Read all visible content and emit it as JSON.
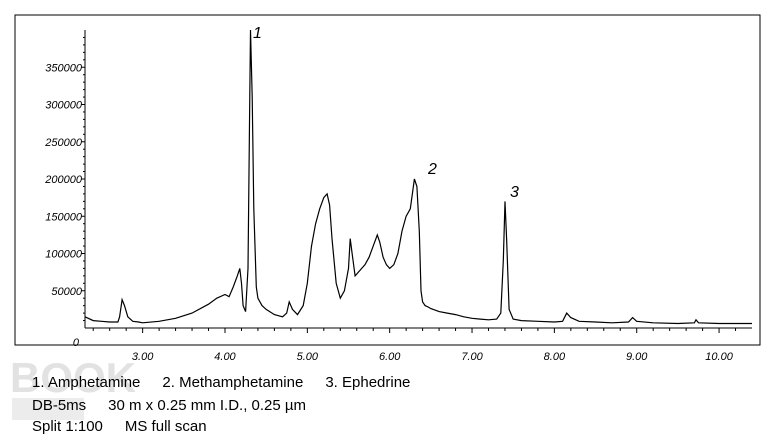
{
  "chart_data": {
    "type": "line",
    "title": "",
    "xlabel": "",
    "ylabel": "",
    "x_ticks": [
      "3.00",
      "4.00",
      "5.00",
      "6.00",
      "7.00",
      "8.00",
      "9.00",
      "10.00"
    ],
    "y_ticks": [
      "0",
      "50000",
      "100000",
      "150000",
      "200000",
      "250000",
      "300000",
      "350000"
    ],
    "xlim": [
      2.3,
      10.4
    ],
    "ylim": [
      0,
      400000
    ],
    "series": [
      {
        "x": [
          2.3,
          2.4,
          2.5,
          2.6,
          2.7,
          2.72,
          2.75,
          2.78,
          2.82,
          2.88,
          2.95,
          3.0,
          3.2,
          3.4,
          3.6,
          3.8,
          3.9,
          4.0,
          4.05,
          4.1,
          4.15,
          4.18,
          4.2,
          4.22,
          4.25,
          4.28,
          4.3,
          4.31,
          4.33,
          4.35,
          4.38,
          4.4,
          4.45,
          4.5,
          4.6,
          4.7,
          4.75,
          4.78,
          4.82,
          4.88,
          4.95,
          5.0,
          5.05,
          5.1,
          5.15,
          5.2,
          5.24,
          5.27,
          5.3,
          5.35,
          5.4,
          5.45,
          5.5,
          5.52,
          5.55,
          5.58,
          5.62,
          5.66,
          5.7,
          5.75,
          5.8,
          5.85,
          5.88,
          5.92,
          5.96,
          6.0,
          6.05,
          6.1,
          6.15,
          6.2,
          6.25,
          6.3,
          6.33,
          6.36,
          6.38,
          6.4,
          6.43,
          6.47,
          6.5,
          6.6,
          6.7,
          6.8,
          6.9,
          7.0,
          7.1,
          7.2,
          7.3,
          7.35,
          7.38,
          7.4,
          7.42,
          7.45,
          7.5,
          7.6,
          7.8,
          8.0,
          8.1,
          8.15,
          8.2,
          8.3,
          8.5,
          8.7,
          8.9,
          8.95,
          9.0,
          9.2,
          9.5,
          9.7,
          9.72,
          9.75,
          10.0,
          10.2,
          10.4
        ],
        "values": [
          15000,
          10000,
          9000,
          8000,
          8000,
          15000,
          38000,
          30000,
          15000,
          9000,
          8000,
          7000,
          9000,
          13000,
          20000,
          32000,
          40000,
          45000,
          42000,
          55000,
          70000,
          80000,
          60000,
          30000,
          22000,
          80000,
          300000,
          400000,
          310000,
          160000,
          55000,
          40000,
          30000,
          25000,
          18000,
          15000,
          20000,
          35000,
          25000,
          18000,
          30000,
          60000,
          110000,
          140000,
          160000,
          175000,
          180000,
          165000,
          120000,
          60000,
          40000,
          50000,
          80000,
          120000,
          95000,
          70000,
          75000,
          80000,
          85000,
          95000,
          110000,
          125000,
          115000,
          95000,
          85000,
          80000,
          85000,
          100000,
          130000,
          150000,
          160000,
          200000,
          190000,
          130000,
          50000,
          35000,
          30000,
          28000,
          26000,
          22000,
          20000,
          18000,
          15000,
          13000,
          12000,
          11000,
          12000,
          20000,
          90000,
          170000,
          120000,
          25000,
          12000,
          10000,
          9000,
          8000,
          9000,
          20000,
          14000,
          9000,
          8000,
          7000,
          8000,
          14000,
          9000,
          7000,
          6000,
          7000,
          11000,
          7000,
          6000,
          6000,
          6000
        ]
      }
    ],
    "annotations": [
      "1",
      "2",
      "3"
    ],
    "grid": false,
    "legend": "none"
  },
  "captions": {
    "line1": [
      "1. Amphetamine",
      "2. Methamphetamine",
      "3. Ephedrine"
    ],
    "line2": [
      "DB-5ms",
      "30 m x 0.25 mm I.D., 0.25 µm"
    ],
    "line3": [
      "Split 1:100",
      "MS full scan"
    ]
  },
  "colors": {
    "line": "#000000",
    "frame": "#000000",
    "watermark": "#e2e2e2"
  },
  "watermark_text": "BOOK"
}
